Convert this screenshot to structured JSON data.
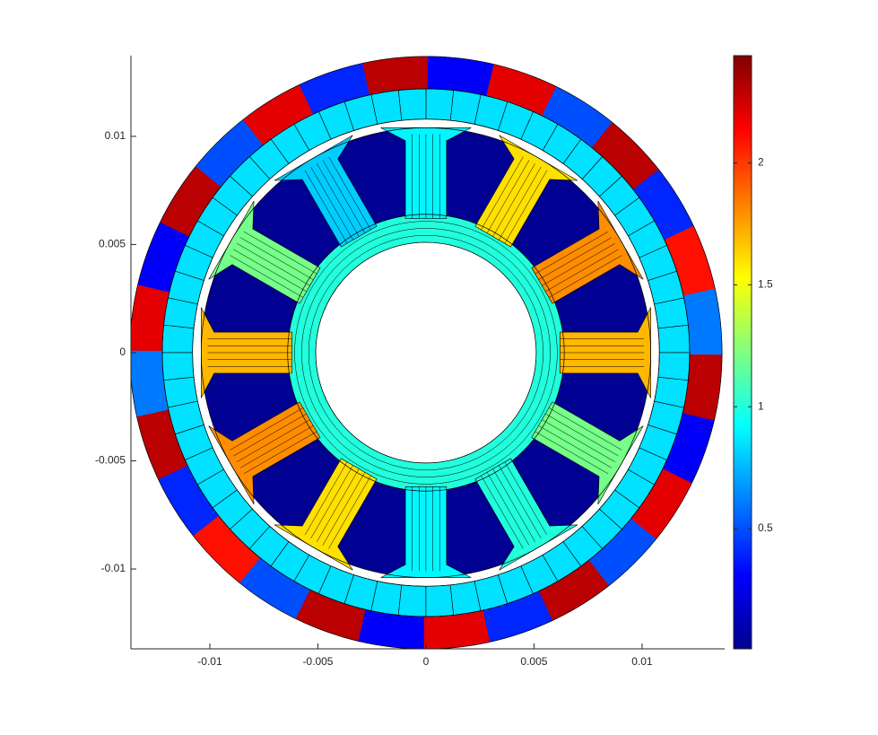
{
  "chart_data": {
    "type": "field",
    "xlim": [
      -0.01365,
      0.01382
    ],
    "ylim": [
      -0.01369,
      0.01373
    ],
    "xticks": [
      -0.01,
      -0.005,
      0,
      0.005,
      0.01
    ],
    "yticks": [
      -0.01,
      -0.005,
      0,
      0.005,
      0.01
    ],
    "colormap": "jet",
    "clim": [
      0.007,
      2.44
    ],
    "cticks": [
      0.5,
      1,
      1.5,
      2
    ],
    "geometry": {
      "rotor_outer_radius": 0.0137,
      "magnet_outer_radius": 0.0122,
      "magnet_inner_radius": 0.0108,
      "stator_outer_radius": 0.0104,
      "yoke_outer_radius": 0.0064,
      "bore_radius": 0.0051,
      "tooth_width": 0.0019
    },
    "rotor_iron_values": [
      2.3,
      0.3,
      2.2,
      0.5,
      2.3,
      0.4,
      2.1,
      0.6,
      2.3,
      0.3,
      2.2,
      0.5,
      2.3,
      0.4,
      2.2,
      0.3,
      2.3,
      0.5,
      2.1,
      0.4,
      2.3,
      0.6,
      2.2,
      0.3,
      2.3,
      0.5,
      2.2,
      0.4
    ],
    "magnet_value": 0.85,
    "stator_yoke_value": 1.0,
    "slot_value": 0.05,
    "tooth_values": [
      1.7,
      1.8,
      1.6,
      0.9,
      0.8,
      1.2,
      1.7,
      1.8,
      1.6,
      0.9,
      1.0,
      1.2
    ]
  }
}
